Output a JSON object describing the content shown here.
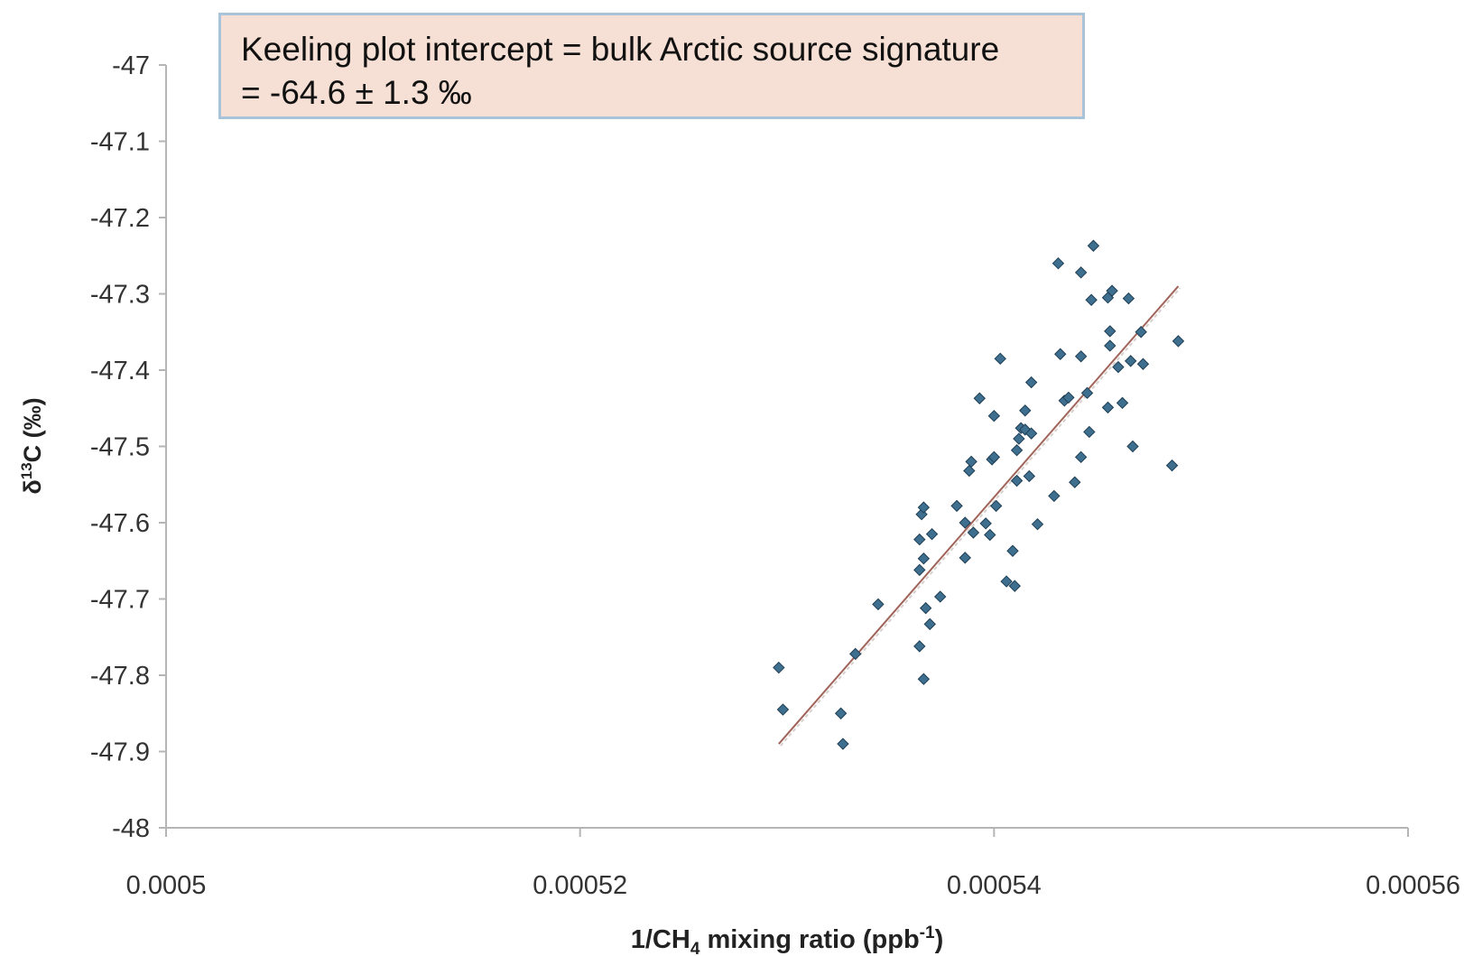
{
  "chart_data": {
    "type": "scatter",
    "title": "",
    "xlabel": {
      "prefix": "1/CH",
      "sub": "4",
      "middle": " mixing ratio (ppb",
      "sup": "-1",
      "suffix": ")"
    },
    "ylabel": {
      "prefix": "δ",
      "sup": "13",
      "suffix": "C (‰)"
    },
    "xlim": [
      0.0005,
      0.00056
    ],
    "ylim": [
      -48,
      -47
    ],
    "x_ticks": [
      "0.0005",
      "0.00052",
      "0.00054",
      "0.00056"
    ],
    "y_ticks": [
      "-47",
      "-47.1",
      "-47.2",
      "-47.3",
      "-47.4",
      "-47.5",
      "-47.6",
      "-47.7",
      "-47.8",
      "-47.9",
      "-48"
    ],
    "grid": false,
    "legend": "none",
    "marker_color": "#3f6f8f",
    "trendline_color": "#a0645a",
    "trendline": {
      "x": [
        0.0005296,
        0.0005489
      ],
      "y": [
        -47.89,
        -47.29
      ]
    },
    "annotation": {
      "line1": "Keeling plot intercept = bulk Arctic source signature",
      "line2": "= -64.6 ± 1.3 ‰"
    },
    "points": [
      {
        "x": 0.0005296,
        "y": -47.79
      },
      {
        "x": 0.0005298,
        "y": -47.845
      },
      {
        "x": 0.0005326,
        "y": -47.85
      },
      {
        "x": 0.0005327,
        "y": -47.89
      },
      {
        "x": 0.0005333,
        "y": -47.772
      },
      {
        "x": 0.0005344,
        "y": -47.707
      },
      {
        "x": 0.0005364,
        "y": -47.762
      },
      {
        "x": 0.0005364,
        "y": -47.622
      },
      {
        "x": 0.0005364,
        "y": -47.662
      },
      {
        "x": 0.0005365,
        "y": -47.589
      },
      {
        "x": 0.0005366,
        "y": -47.58
      },
      {
        "x": 0.0005366,
        "y": -47.647
      },
      {
        "x": 0.0005366,
        "y": -47.805
      },
      {
        "x": 0.0005367,
        "y": -47.712
      },
      {
        "x": 0.0005369,
        "y": -47.733
      },
      {
        "x": 0.000537,
        "y": -47.615
      },
      {
        "x": 0.0005374,
        "y": -47.697
      },
      {
        "x": 0.0005382,
        "y": -47.578
      },
      {
        "x": 0.0005386,
        "y": -47.646
      },
      {
        "x": 0.0005386,
        "y": -47.6
      },
      {
        "x": 0.0005388,
        "y": -47.532
      },
      {
        "x": 0.0005389,
        "y": -47.52
      },
      {
        "x": 0.000539,
        "y": -47.613
      },
      {
        "x": 0.0005393,
        "y": -47.437
      },
      {
        "x": 0.0005396,
        "y": -47.601
      },
      {
        "x": 0.0005398,
        "y": -47.616
      },
      {
        "x": 0.0005399,
        "y": -47.517
      },
      {
        "x": 0.00054,
        "y": -47.514
      },
      {
        "x": 0.00054,
        "y": -47.46
      },
      {
        "x": 0.0005401,
        "y": -47.578
      },
      {
        "x": 0.0005403,
        "y": -47.385
      },
      {
        "x": 0.0005406,
        "y": -47.677
      },
      {
        "x": 0.0005409,
        "y": -47.637
      },
      {
        "x": 0.000541,
        "y": -47.683
      },
      {
        "x": 0.0005411,
        "y": -47.545
      },
      {
        "x": 0.0005411,
        "y": -47.505
      },
      {
        "x": 0.0005412,
        "y": -47.49
      },
      {
        "x": 0.0005413,
        "y": -47.476
      },
      {
        "x": 0.0005415,
        "y": -47.453
      },
      {
        "x": 0.0005415,
        "y": -47.478
      },
      {
        "x": 0.0005417,
        "y": -47.539
      },
      {
        "x": 0.0005418,
        "y": -47.483
      },
      {
        "x": 0.0005418,
        "y": -47.416
      },
      {
        "x": 0.0005421,
        "y": -47.602
      },
      {
        "x": 0.0005429,
        "y": -47.565
      },
      {
        "x": 0.0005431,
        "y": -47.26
      },
      {
        "x": 0.0005432,
        "y": -47.379
      },
      {
        "x": 0.0005434,
        "y": -47.44
      },
      {
        "x": 0.0005436,
        "y": -47.436
      },
      {
        "x": 0.0005439,
        "y": -47.547
      },
      {
        "x": 0.0005442,
        "y": -47.514
      },
      {
        "x": 0.0005442,
        "y": -47.272
      },
      {
        "x": 0.0005442,
        "y": -47.382
      },
      {
        "x": 0.0005445,
        "y": -47.43
      },
      {
        "x": 0.0005446,
        "y": -47.481
      },
      {
        "x": 0.0005447,
        "y": -47.308
      },
      {
        "x": 0.0005448,
        "y": -47.237
      },
      {
        "x": 0.0005455,
        "y": -47.305
      },
      {
        "x": 0.0005455,
        "y": -47.449
      },
      {
        "x": 0.0005456,
        "y": -47.368
      },
      {
        "x": 0.0005456,
        "y": -47.349
      },
      {
        "x": 0.0005457,
        "y": -47.296
      },
      {
        "x": 0.000546,
        "y": -47.396
      },
      {
        "x": 0.0005462,
        "y": -47.443
      },
      {
        "x": 0.0005465,
        "y": -47.306
      },
      {
        "x": 0.0005466,
        "y": -47.388
      },
      {
        "x": 0.0005467,
        "y": -47.5
      },
      {
        "x": 0.0005471,
        "y": -47.35
      },
      {
        "x": 0.0005472,
        "y": -47.392
      },
      {
        "x": 0.0005486,
        "y": -47.525
      },
      {
        "x": 0.0005489,
        "y": -47.362
      }
    ]
  }
}
